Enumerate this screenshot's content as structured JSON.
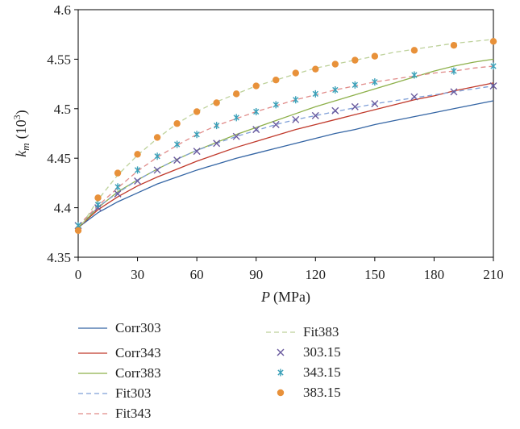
{
  "chart_data": {
    "type": "line",
    "xlabel_var": "P",
    "xlabel_unit": "(MPa)",
    "ylabel_var": "k",
    "ylabel_sub": "m",
    "ylabel_unit_base": "(10",
    "ylabel_unit_exp": "3",
    "ylabel_unit_close": ")",
    "xlim": [
      0,
      210
    ],
    "ylim": [
      4.35,
      4.6
    ],
    "x_ticks": [
      0,
      30,
      60,
      90,
      120,
      150,
      180,
      210
    ],
    "x_tick_labels": [
      "0",
      "30",
      "60",
      "90",
      "120",
      "150",
      "180",
      "210"
    ],
    "y_ticks": [
      4.35,
      4.4,
      4.45,
      4.5,
      4.55,
      4.6
    ],
    "y_tick_labels": [
      "4.35",
      "4.4",
      "4.45",
      "4.5",
      "4.55",
      "4.6"
    ],
    "grid": false,
    "legend_position": "bottom",
    "series": [
      {
        "name": "Corr303",
        "style": "solid",
        "color": "#3465a4",
        "x": [
          0,
          10,
          20,
          30,
          40,
          50,
          60,
          70,
          80,
          90,
          100,
          110,
          120,
          130,
          140,
          150,
          160,
          170,
          180,
          190,
          200,
          210
        ],
        "y": [
          4.38,
          4.395,
          4.406,
          4.415,
          4.424,
          4.431,
          4.438,
          4.444,
          4.45,
          4.455,
          4.46,
          4.465,
          4.47,
          4.475,
          4.479,
          4.484,
          4.488,
          4.492,
          4.496,
          4.5,
          4.504,
          4.508
        ]
      },
      {
        "name": "Corr343",
        "style": "solid",
        "color": "#c0392b",
        "x": [
          0,
          10,
          20,
          30,
          40,
          50,
          60,
          70,
          80,
          90,
          100,
          110,
          120,
          130,
          140,
          150,
          160,
          170,
          180,
          190,
          200,
          210
        ],
        "y": [
          4.38,
          4.398,
          4.411,
          4.422,
          4.431,
          4.439,
          4.447,
          4.454,
          4.461,
          4.467,
          4.473,
          4.479,
          4.484,
          4.489,
          4.494,
          4.499,
          4.504,
          4.509,
          4.513,
          4.518,
          4.522,
          4.526
        ]
      },
      {
        "name": "Corr383",
        "style": "solid",
        "color": "#8db04a",
        "x": [
          0,
          10,
          20,
          30,
          40,
          50,
          60,
          70,
          80,
          90,
          100,
          110,
          120,
          130,
          140,
          150,
          160,
          170,
          180,
          190,
          200,
          210
        ],
        "y": [
          4.38,
          4.4,
          4.416,
          4.428,
          4.439,
          4.449,
          4.458,
          4.466,
          4.474,
          4.481,
          4.488,
          4.495,
          4.502,
          4.508,
          4.514,
          4.52,
          4.526,
          4.532,
          4.538,
          4.543,
          4.547,
          4.55
        ]
      },
      {
        "name": "Fit303",
        "style": "dashed",
        "color": "#7e9fd8",
        "x": [
          0,
          10,
          20,
          30,
          40,
          50,
          60,
          70,
          80,
          90,
          100,
          110,
          120,
          130,
          140,
          150,
          160,
          170,
          180,
          190,
          200,
          210
        ],
        "y": [
          4.382,
          4.401,
          4.415,
          4.428,
          4.439,
          4.449,
          4.458,
          4.465,
          4.472,
          4.478,
          4.484,
          4.489,
          4.493,
          4.497,
          4.501,
          4.505,
          4.508,
          4.511,
          4.514,
          4.517,
          4.52,
          4.523
        ]
      },
      {
        "name": "Fit343",
        "style": "dashed",
        "color": "#e08a88",
        "x": [
          0,
          10,
          20,
          30,
          40,
          50,
          60,
          70,
          80,
          90,
          100,
          110,
          120,
          130,
          140,
          150,
          160,
          170,
          180,
          190,
          200,
          210
        ],
        "y": [
          4.382,
          4.402,
          4.42,
          4.437,
          4.451,
          4.463,
          4.474,
          4.483,
          4.49,
          4.497,
          4.503,
          4.509,
          4.514,
          4.519,
          4.523,
          4.527,
          4.53,
          4.533,
          4.536,
          4.538,
          4.541,
          4.543
        ]
      },
      {
        "name": "Fit383",
        "style": "dashed",
        "color": "#bdd19a",
        "x": [
          0,
          10,
          20,
          30,
          40,
          50,
          60,
          70,
          80,
          90,
          100,
          110,
          120,
          130,
          140,
          150,
          160,
          170,
          180,
          190,
          200,
          210
        ],
        "y": [
          4.377,
          4.408,
          4.433,
          4.453,
          4.47,
          4.485,
          4.497,
          4.507,
          4.515,
          4.523,
          4.529,
          4.535,
          4.541,
          4.545,
          4.549,
          4.553,
          4.557,
          4.56,
          4.563,
          4.566,
          4.568,
          4.57
        ]
      },
      {
        "name": "303.15",
        "marker": "x",
        "color": "#6a5a9e",
        "x": [
          0,
          10,
          20,
          30,
          40,
          50,
          60,
          70,
          80,
          90,
          100,
          110,
          120,
          130,
          140,
          150,
          170,
          190,
          210
        ],
        "y": [
          4.382,
          4.4,
          4.414,
          4.427,
          4.438,
          4.448,
          4.457,
          4.465,
          4.472,
          4.479,
          4.484,
          4.489,
          4.493,
          4.498,
          4.502,
          4.505,
          4.512,
          4.517,
          4.523
        ]
      },
      {
        "name": "343.15",
        "marker": "asterisk",
        "color": "#3aa0b8",
        "x": [
          0,
          10,
          20,
          30,
          40,
          50,
          60,
          70,
          80,
          90,
          100,
          110,
          120,
          130,
          140,
          150,
          170,
          190,
          210
        ],
        "y": [
          4.382,
          4.403,
          4.421,
          4.438,
          4.452,
          4.464,
          4.474,
          4.483,
          4.491,
          4.497,
          4.504,
          4.509,
          4.515,
          4.519,
          4.524,
          4.527,
          4.534,
          4.538,
          4.543
        ]
      },
      {
        "name": "383.15",
        "marker": "circle",
        "color": "#e8913a",
        "x": [
          0,
          10,
          20,
          30,
          40,
          50,
          60,
          70,
          80,
          90,
          100,
          110,
          120,
          130,
          140,
          150,
          170,
          190,
          210
        ],
        "y": [
          4.377,
          4.41,
          4.435,
          4.454,
          4.471,
          4.485,
          4.497,
          4.506,
          4.515,
          4.523,
          4.529,
          4.536,
          4.54,
          4.545,
          4.549,
          4.553,
          4.559,
          4.564,
          4.568
        ]
      }
    ]
  }
}
